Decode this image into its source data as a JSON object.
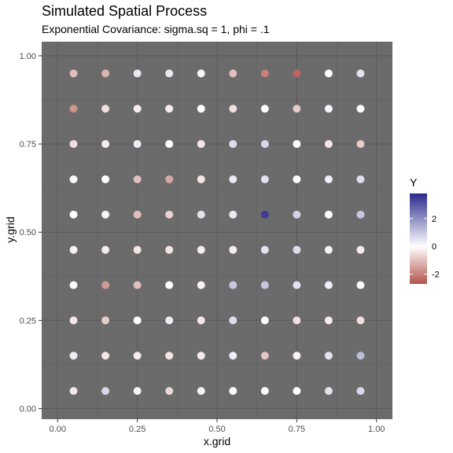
{
  "chart_data": {
    "type": "scatter",
    "title": "Simulated Spatial Process",
    "subtitle": "Exponential Covariance: sigma.sq = 1, phi = .1",
    "xlabel": "x.grid",
    "ylabel": "y.grid",
    "xlim": [
      -0.05,
      1.05
    ],
    "ylim": [
      -0.03,
      1.04
    ],
    "x_ticks": [
      "0.00",
      "0.25",
      "0.50",
      "0.75",
      "1.00"
    ],
    "y_ticks": [
      "0.00",
      "0.25",
      "0.50",
      "0.75",
      "1.00"
    ],
    "grid": true,
    "background": "#6b6b6b",
    "legend": {
      "title": "Y",
      "position": "right",
      "ticks": [
        "2",
        "0",
        "-2"
      ],
      "range": [
        -2.7,
        3.8
      ],
      "low_color": "#b2534b",
      "mid_color": "#ffffff",
      "high_color": "#2b2a8c"
    },
    "points": [
      {
        "x": 0.05,
        "y": 0.95,
        "value": -1.0
      },
      {
        "x": 0.15,
        "y": 0.95,
        "value": -1.2
      },
      {
        "x": 0.25,
        "y": 0.95,
        "value": 0.4
      },
      {
        "x": 0.35,
        "y": 0.95,
        "value": 0.4
      },
      {
        "x": 0.45,
        "y": 0.95,
        "value": 0.2
      },
      {
        "x": 0.55,
        "y": 0.95,
        "value": -1.0
      },
      {
        "x": 0.65,
        "y": 0.95,
        "value": -2.0
      },
      {
        "x": 0.75,
        "y": 0.95,
        "value": -2.4
      },
      {
        "x": 0.85,
        "y": 0.95,
        "value": 0.0
      },
      {
        "x": 0.95,
        "y": 0.95,
        "value": 0.5
      },
      {
        "x": 0.05,
        "y": 0.85,
        "value": -1.7
      },
      {
        "x": 0.15,
        "y": 0.85,
        "value": -0.5
      },
      {
        "x": 0.25,
        "y": 0.85,
        "value": -0.3
      },
      {
        "x": 0.35,
        "y": 0.85,
        "value": -0.3
      },
      {
        "x": 0.45,
        "y": 0.85,
        "value": 0.0
      },
      {
        "x": 0.55,
        "y": 0.85,
        "value": -0.5
      },
      {
        "x": 0.65,
        "y": 0.85,
        "value": 0.0
      },
      {
        "x": 0.75,
        "y": 0.85,
        "value": -0.8
      },
      {
        "x": 0.85,
        "y": 0.85,
        "value": 0.2
      },
      {
        "x": 0.95,
        "y": 0.85,
        "value": 0.0
      },
      {
        "x": 0.05,
        "y": 0.75,
        "value": -0.5
      },
      {
        "x": 0.15,
        "y": 0.75,
        "value": -0.3
      },
      {
        "x": 0.25,
        "y": 0.75,
        "value": 0.3
      },
      {
        "x": 0.35,
        "y": 0.75,
        "value": 0.0
      },
      {
        "x": 0.45,
        "y": 0.75,
        "value": -0.4
      },
      {
        "x": 0.55,
        "y": 0.75,
        "value": 0.6
      },
      {
        "x": 0.65,
        "y": 0.75,
        "value": 0.7
      },
      {
        "x": 0.75,
        "y": 0.75,
        "value": 0.0
      },
      {
        "x": 0.85,
        "y": 0.75,
        "value": -0.4
      },
      {
        "x": 0.95,
        "y": 0.75,
        "value": -0.8
      },
      {
        "x": 0.05,
        "y": 0.65,
        "value": 0.1
      },
      {
        "x": 0.15,
        "y": 0.65,
        "value": 0.0
      },
      {
        "x": 0.25,
        "y": 0.65,
        "value": -1.0
      },
      {
        "x": 0.35,
        "y": 0.65,
        "value": -1.4
      },
      {
        "x": 0.45,
        "y": 0.65,
        "value": -0.4
      },
      {
        "x": 0.55,
        "y": 0.65,
        "value": 0.4
      },
      {
        "x": 0.65,
        "y": 0.65,
        "value": 0.5
      },
      {
        "x": 0.75,
        "y": 0.65,
        "value": 0.0
      },
      {
        "x": 0.85,
        "y": 0.65,
        "value": 0.3
      },
      {
        "x": 0.95,
        "y": 0.65,
        "value": 0.6
      },
      {
        "x": 0.05,
        "y": 0.55,
        "value": 0.0
      },
      {
        "x": 0.15,
        "y": 0.55,
        "value": 0.2
      },
      {
        "x": 0.25,
        "y": 0.55,
        "value": -1.0
      },
      {
        "x": 0.35,
        "y": 0.55,
        "value": -0.7
      },
      {
        "x": 0.45,
        "y": 0.55,
        "value": 0.5
      },
      {
        "x": 0.55,
        "y": 0.55,
        "value": 0.4
      },
      {
        "x": 0.65,
        "y": 0.55,
        "value": 3.5
      },
      {
        "x": 0.75,
        "y": 0.55,
        "value": 0.8
      },
      {
        "x": 0.85,
        "y": 0.55,
        "value": 0.0
      },
      {
        "x": 0.95,
        "y": 0.55,
        "value": 1.0
      },
      {
        "x": 0.05,
        "y": 0.45,
        "value": -0.2
      },
      {
        "x": 0.15,
        "y": 0.45,
        "value": -0.3
      },
      {
        "x": 0.25,
        "y": 0.45,
        "value": -0.4
      },
      {
        "x": 0.35,
        "y": 0.45,
        "value": -0.4
      },
      {
        "x": 0.45,
        "y": 0.45,
        "value": -0.3
      },
      {
        "x": 0.55,
        "y": 0.45,
        "value": -0.3
      },
      {
        "x": 0.65,
        "y": 0.45,
        "value": 0.5
      },
      {
        "x": 0.75,
        "y": 0.45,
        "value": 0.6
      },
      {
        "x": 0.85,
        "y": 0.45,
        "value": -0.2
      },
      {
        "x": 0.95,
        "y": 0.45,
        "value": -0.3
      },
      {
        "x": 0.05,
        "y": 0.35,
        "value": 0.0
      },
      {
        "x": 0.15,
        "y": 0.35,
        "value": -1.6
      },
      {
        "x": 0.25,
        "y": 0.35,
        "value": -1.0
      },
      {
        "x": 0.35,
        "y": 0.35,
        "value": 0.0
      },
      {
        "x": 0.45,
        "y": 0.35,
        "value": -0.2
      },
      {
        "x": 0.55,
        "y": 0.35,
        "value": 1.0
      },
      {
        "x": 0.65,
        "y": 0.35,
        "value": 1.0
      },
      {
        "x": 0.75,
        "y": 0.35,
        "value": 0.5
      },
      {
        "x": 0.85,
        "y": 0.35,
        "value": 0.3
      },
      {
        "x": 0.95,
        "y": 0.35,
        "value": -0.1
      },
      {
        "x": 0.05,
        "y": 0.25,
        "value": -0.4
      },
      {
        "x": 0.15,
        "y": 0.25,
        "value": -0.8
      },
      {
        "x": 0.25,
        "y": 0.25,
        "value": 0.0
      },
      {
        "x": 0.35,
        "y": 0.25,
        "value": 0.3
      },
      {
        "x": 0.45,
        "y": 0.25,
        "value": -0.4
      },
      {
        "x": 0.55,
        "y": 0.25,
        "value": 0.6
      },
      {
        "x": 0.65,
        "y": 0.25,
        "value": 0.0
      },
      {
        "x": 0.75,
        "y": 0.25,
        "value": -0.5
      },
      {
        "x": 0.85,
        "y": 0.25,
        "value": -0.3
      },
      {
        "x": 0.95,
        "y": 0.25,
        "value": -0.5
      },
      {
        "x": 0.05,
        "y": 0.15,
        "value": 0.3
      },
      {
        "x": 0.15,
        "y": 0.15,
        "value": -0.4
      },
      {
        "x": 0.25,
        "y": 0.15,
        "value": -0.3
      },
      {
        "x": 0.35,
        "y": 0.15,
        "value": -0.4
      },
      {
        "x": 0.45,
        "y": 0.15,
        "value": -0.3
      },
      {
        "x": 0.55,
        "y": 0.15,
        "value": 0.3
      },
      {
        "x": 0.65,
        "y": 0.15,
        "value": -0.9
      },
      {
        "x": 0.75,
        "y": 0.15,
        "value": -0.2
      },
      {
        "x": 0.85,
        "y": 0.15,
        "value": 0.5
      },
      {
        "x": 0.95,
        "y": 0.15,
        "value": 1.2
      },
      {
        "x": 0.05,
        "y": 0.05,
        "value": -0.4
      },
      {
        "x": 0.15,
        "y": 0.05,
        "value": 0.7
      },
      {
        "x": 0.25,
        "y": 0.05,
        "value": -0.2
      },
      {
        "x": 0.35,
        "y": 0.05,
        "value": -0.6
      },
      {
        "x": 0.45,
        "y": 0.05,
        "value": -0.2
      },
      {
        "x": 0.55,
        "y": 0.05,
        "value": 0.0
      },
      {
        "x": 0.65,
        "y": 0.05,
        "value": 0.0
      },
      {
        "x": 0.75,
        "y": 0.05,
        "value": 0.0
      },
      {
        "x": 0.85,
        "y": 0.05,
        "value": 0.5
      },
      {
        "x": 0.95,
        "y": 0.05,
        "value": 0.7
      }
    ]
  }
}
